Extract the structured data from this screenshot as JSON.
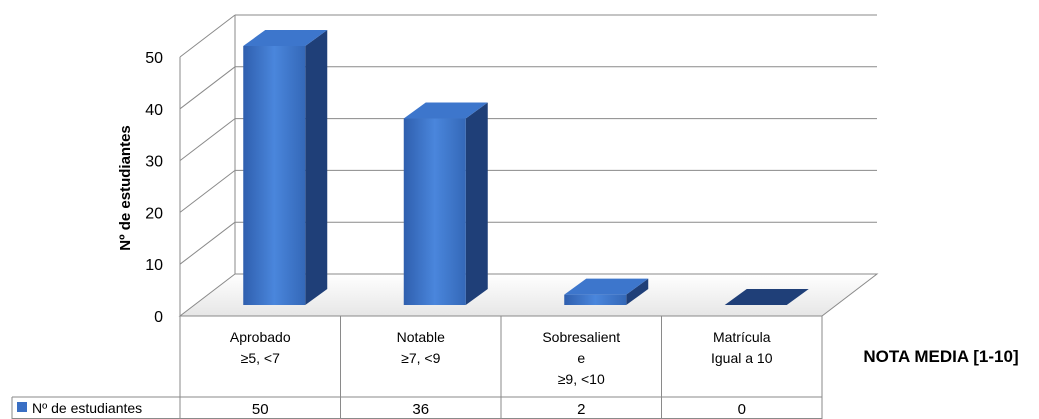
{
  "chart_data": {
    "type": "bar",
    "categories": [
      [
        "Aprobado",
        "≥5, <7"
      ],
      [
        "Notable",
        "≥7, <9"
      ],
      [
        "Sobresalient",
        "e",
        "≥9, <10"
      ],
      [
        "Matrícula",
        "Igual a 10"
      ]
    ],
    "series": [
      {
        "name": "Nº de estudiantes",
        "values": [
          50,
          36,
          2,
          0
        ],
        "color": "#3a6fc4"
      }
    ],
    "ylabel": "Nº de estudiantes",
    "xlabel": "NOTA MEDIA [1-10]",
    "ylim": [
      0,
      50
    ],
    "yticks": [
      0,
      10,
      20,
      30,
      40,
      50
    ],
    "data_table": true,
    "grid": true,
    "three_d": true
  }
}
